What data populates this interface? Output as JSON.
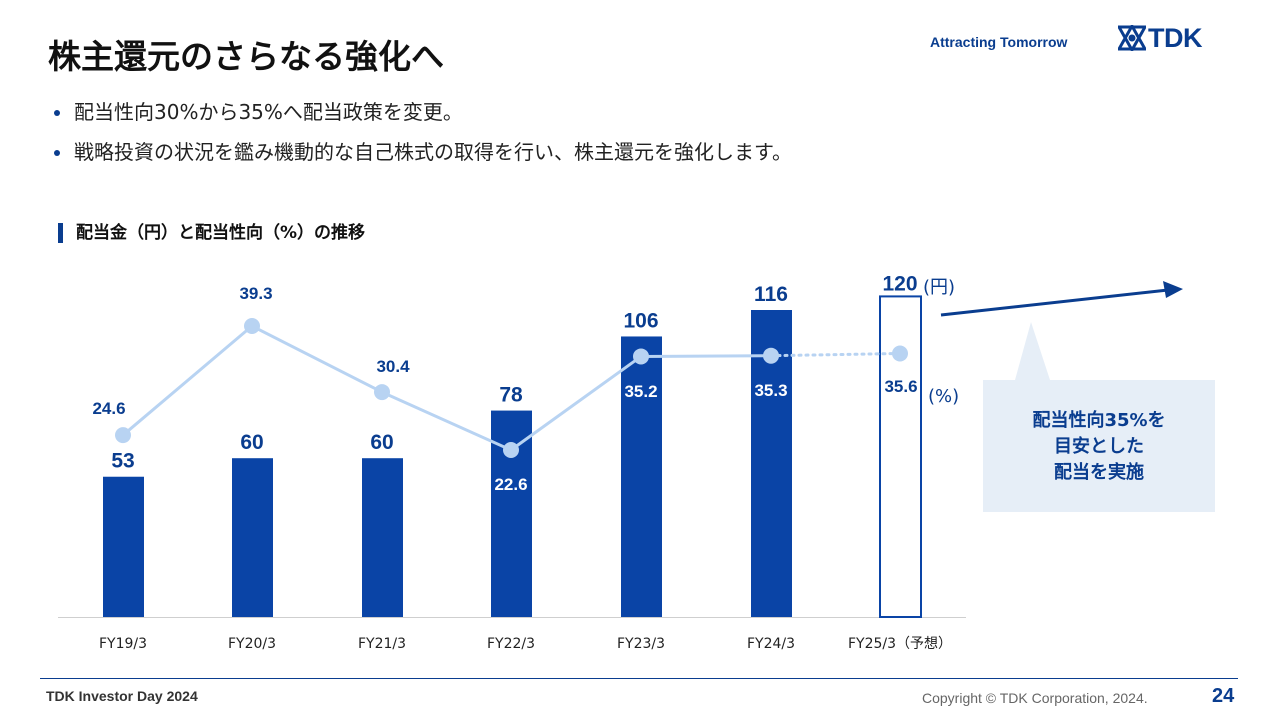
{
  "header": {
    "title": "株主還元のさらなる強化へ",
    "tagline": "Attracting Tomorrow",
    "logo_text": "TDK"
  },
  "bullets": [
    "配当性向30%から35%へ配当政策を変更。",
    "戦略投資の状況を鑑み機動的な自己株式の取得を行い、株主還元を強化します。"
  ],
  "section_heading": "配当金（円）と配当性向（%）の推移",
  "chart_data": {
    "type": "bar",
    "title": "",
    "categories": [
      "FY19/3",
      "FY20/3",
      "FY21/3",
      "FY22/3",
      "FY23/3",
      "FY24/3",
      "FY25/3（予想）"
    ],
    "series": [
      {
        "name": "配当金",
        "unit_label": "(円)",
        "values": [
          53,
          60,
          60,
          78,
          106,
          116,
          120
        ],
        "color": "#0a44a6",
        "forecast_index": 6
      },
      {
        "name": "配当性向",
        "unit_label": "(%)",
        "type": "line",
        "values": [
          24.6,
          39.3,
          30.4,
          22.6,
          35.2,
          35.3,
          35.6
        ],
        "color": "#b8d3f2",
        "forecast_index": 6
      }
    ],
    "value_labels_bar": [
      "53",
      "60",
      "60",
      "78",
      "106",
      "116",
      "120"
    ],
    "value_labels_line": [
      "24.6",
      "39.3",
      "30.4",
      "22.6",
      "35.2",
      "35.3",
      "35.6"
    ],
    "ylim_bar": [
      0,
      150
    ],
    "ylim_line": [
      0,
      52
    ],
    "grid": false
  },
  "callout": {
    "lines": [
      "配当性向35%を",
      "目安とした",
      "配当を実施"
    ],
    "bg_color": "#e6eef7"
  },
  "footer": {
    "event": "TDK Investor Day 2024",
    "copyright": "Copyright  © TDK Corporation, 2024.",
    "page": "24"
  },
  "colors": {
    "accent": "#0a3d8f",
    "bar": "#0a44a6",
    "line": "#b8d3f2"
  }
}
